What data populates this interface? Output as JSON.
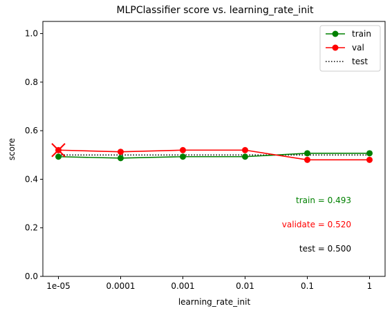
{
  "chart_data": {
    "type": "line",
    "title": "MLPClassifier score vs. learning_rate_init",
    "xlabel": "learning_rate_init",
    "ylabel": "score",
    "categories": [
      "1e-05",
      "0.0001",
      "0.001",
      "0.01",
      "0.1",
      "1"
    ],
    "ylim": [
      0.0,
      1.05
    ],
    "yticks": [
      "0.0",
      "0.2",
      "0.4",
      "0.6",
      "0.8",
      "1.0"
    ],
    "grid": false,
    "legend_position": "top-right",
    "series": [
      {
        "name": "train",
        "color": "#008000",
        "style": "solid-marker",
        "values": [
          0.493,
          0.487,
          0.493,
          0.493,
          0.507,
          0.507
        ]
      },
      {
        "name": "val",
        "color": "#ff0000",
        "style": "solid-marker",
        "values": [
          0.52,
          0.513,
          0.52,
          0.52,
          0.48,
          0.48
        ]
      },
      {
        "name": "test",
        "color": "#000000",
        "style": "dotted",
        "values": [
          0.5,
          0.5,
          0.5,
          0.5,
          0.5,
          0.5
        ]
      }
    ],
    "best_marker": {
      "category": "1e-05",
      "value": 0.52,
      "color": "#ff0000",
      "shape": "x"
    },
    "annotations": [
      {
        "text": "train = 0.493",
        "color": "#008000"
      },
      {
        "text": "validate = 0.520",
        "color": "#ff0000"
      },
      {
        "text": "test = 0.500",
        "color": "#000000"
      }
    ]
  }
}
